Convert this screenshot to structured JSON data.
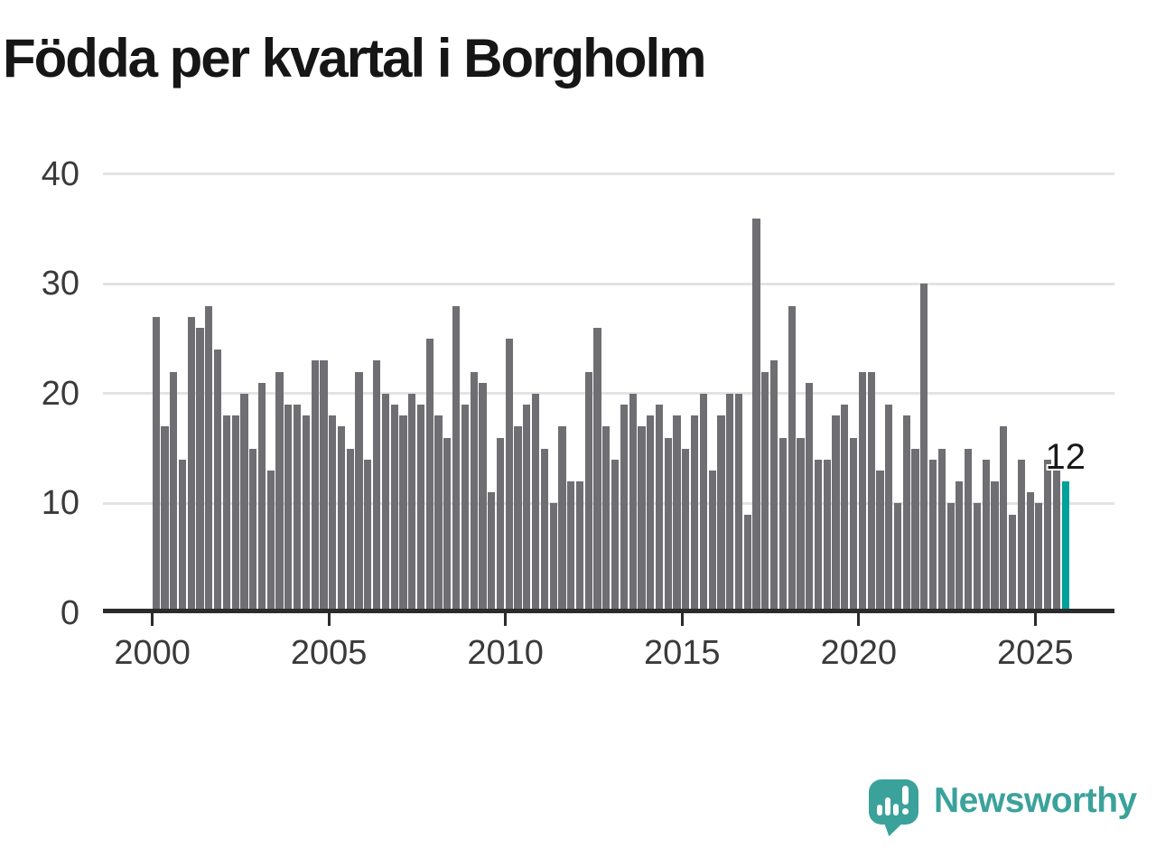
{
  "title": "Födda per kvartal i Borgholm",
  "branding": {
    "logo_text": "Newsworthy"
  },
  "colors": {
    "bar": "#6e6e73",
    "highlight": "#00a19a",
    "brand_teal": "#3ba29b",
    "title_text": "#161616",
    "axis_text": "#3a3a3a",
    "gridline": "#e3e3e3",
    "axis_line": "#2b2b2b"
  },
  "chart_data": {
    "type": "bar",
    "title": "Födda per kvartal i Borgholm",
    "frequency": "quarterly",
    "start": "2000-Q1",
    "end": "2025-Q4",
    "values": [
      27,
      17,
      22,
      14,
      27,
      26,
      28,
      24,
      18,
      18,
      20,
      15,
      21,
      13,
      22,
      19,
      19,
      18,
      23,
      23,
      18,
      17,
      15,
      22,
      14,
      23,
      20,
      19,
      18,
      20,
      19,
      25,
      18,
      16,
      28,
      19,
      22,
      21,
      11,
      16,
      25,
      17,
      19,
      20,
      15,
      10,
      17,
      12,
      12,
      22,
      26,
      17,
      14,
      19,
      20,
      17,
      18,
      19,
      16,
      18,
      15,
      18,
      20,
      13,
      18,
      20,
      20,
      9,
      36,
      22,
      23,
      16,
      28,
      16,
      21,
      14,
      14,
      18,
      19,
      16,
      22,
      22,
      13,
      19,
      10,
      18,
      15,
      30,
      14,
      15,
      10,
      12,
      15,
      10,
      14,
      12,
      17,
      9,
      14,
      11,
      10,
      14,
      13,
      12
    ],
    "highlight_index": 103,
    "highlight_label": "12",
    "ylim": [
      0,
      40
    ],
    "yticks": [
      0,
      10,
      20,
      30,
      40
    ],
    "xticks": [
      2000,
      2005,
      2010,
      2015,
      2020,
      2025
    ],
    "grid": "horizontal-only",
    "legend": "none"
  }
}
